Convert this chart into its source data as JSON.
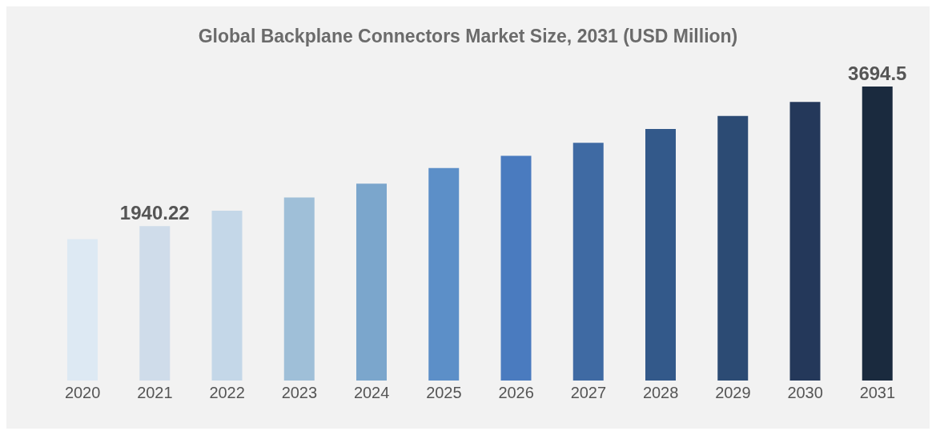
{
  "chart_data": {
    "type": "bar",
    "title": "Global Backplane Connectors Market Size, 2031 (USD Million)",
    "categories": [
      "2020",
      "2021",
      "2022",
      "2023",
      "2024",
      "2025",
      "2026",
      "2027",
      "2028",
      "2029",
      "2030",
      "2031"
    ],
    "values": [
      1776,
      1940.22,
      2135,
      2299,
      2474,
      2669,
      2823,
      2987,
      3161,
      3325,
      3500,
      3694.5
    ],
    "colors": [
      "#dde9f3",
      "#cfdcea",
      "#c4d7e8",
      "#9fbfd8",
      "#7ba6cc",
      "#5c8fc8",
      "#4a7bbf",
      "#3f6aa3",
      "#33598a",
      "#2c4b74",
      "#24385a",
      "#1a2a3e"
    ],
    "value_labels": [
      null,
      "1940.22",
      null,
      null,
      null,
      null,
      null,
      null,
      null,
      null,
      null,
      "3694.5"
    ],
    "grid": false,
    "legend": false
  }
}
